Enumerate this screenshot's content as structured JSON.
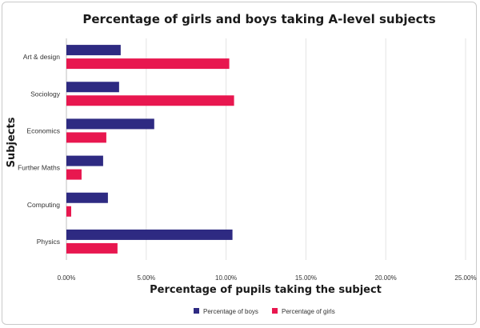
{
  "chart_data": {
    "type": "bar",
    "orientation": "horizontal",
    "title": "Percentage of girls and boys taking A-level subjects",
    "xlabel": "Percentage of pupils taking the subject",
    "ylabel": "Subjects",
    "categories": [
      "Art & design",
      "Sociology",
      "Economics",
      "Further Maths",
      "Computing",
      "Physics"
    ],
    "series": [
      {
        "name": "Percentage of boys",
        "color": "#2e2a82",
        "values": [
          3.4,
          3.3,
          5.5,
          2.3,
          2.6,
          10.4
        ]
      },
      {
        "name": "Percentage of girls",
        "color": "#e8174f",
        "values": [
          10.2,
          10.5,
          2.5,
          0.95,
          0.3,
          3.2
        ]
      }
    ],
    "xlim": [
      0,
      25
    ],
    "xticks": [
      "0.00%",
      "5.00%",
      "10.00%",
      "15.00%",
      "20.00%",
      "25.00%"
    ],
    "grid": "vertical",
    "legend": "bottom"
  }
}
